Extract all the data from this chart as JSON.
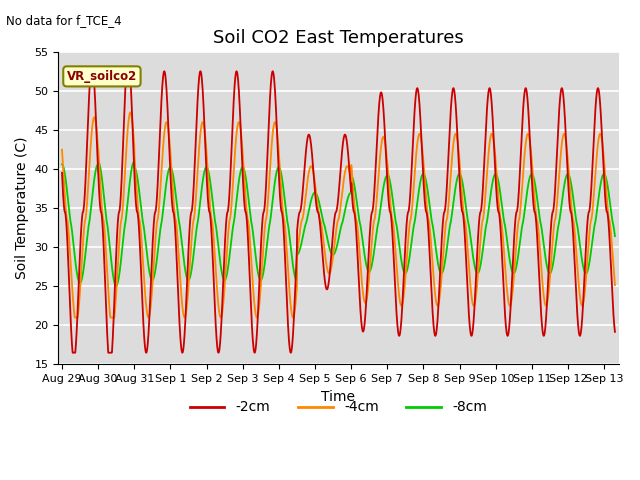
{
  "title": "Soil CO2 East Temperatures",
  "subtitle": "No data for f_TCE_4",
  "ylabel": "Soil Temperature (C)",
  "xlabel": "Time",
  "ylim": [
    15,
    55
  ],
  "background_color": "#dcdcdc",
  "colors": {
    "-2cm": "#cc0000",
    "-4cm": "#ff8800",
    "-8cm": "#00cc00"
  },
  "legend_label": "VR_soilco2",
  "x_tick_labels": [
    "Aug 29",
    "Aug 30",
    "Aug 31",
    "Sep 1",
    "Sep 2",
    "Sep 3",
    "Sep 4",
    "Sep 5",
    "Sep 6",
    "Sep 7",
    "Sep 8",
    "Sep 9",
    "Sep 10",
    "Sep 11",
    "Sep 12",
    "Sep 13"
  ],
  "grid_color": "#ffffff",
  "title_fontsize": 13,
  "tick_fontsize": 8,
  "label_fontsize": 10
}
